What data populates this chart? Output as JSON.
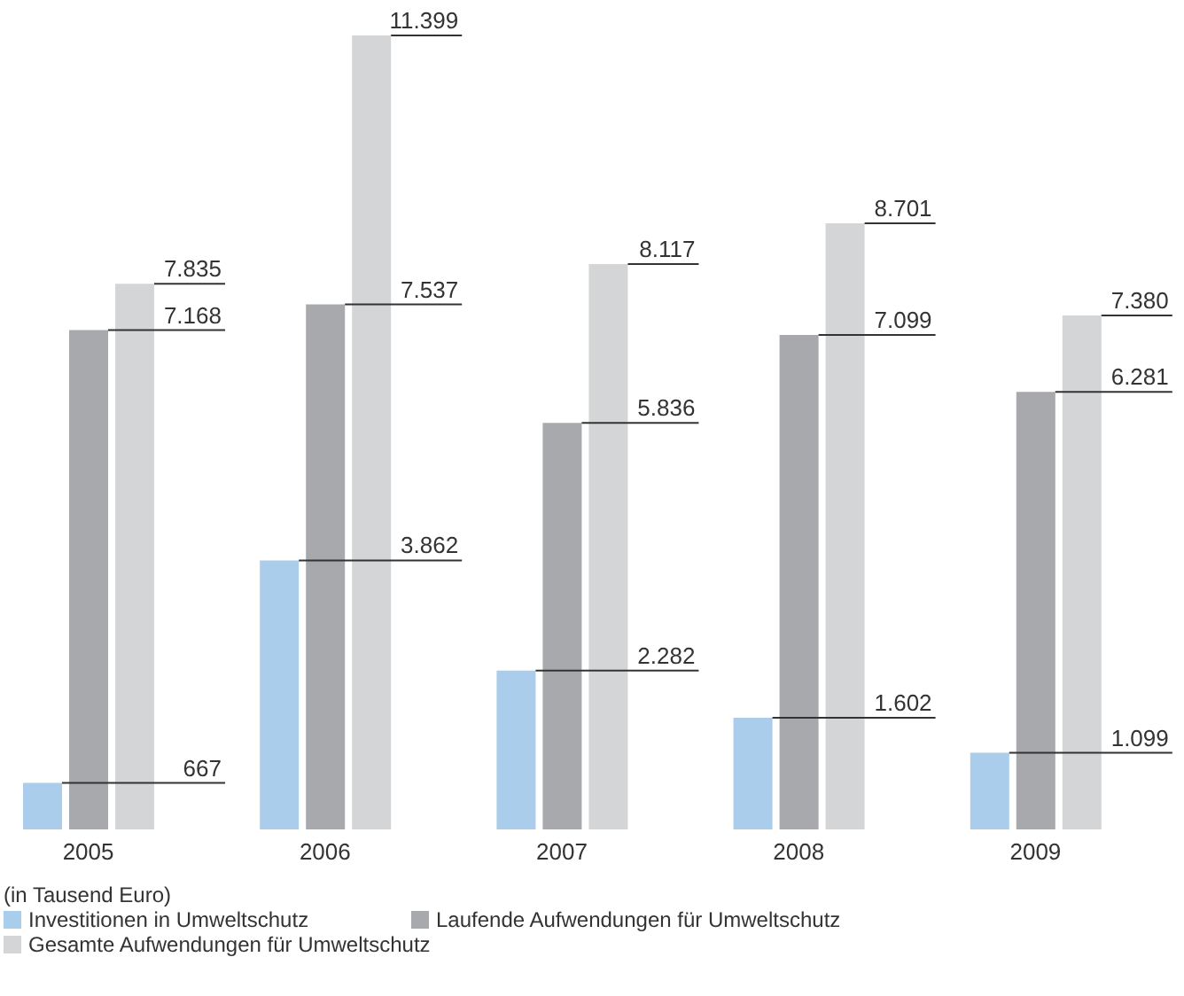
{
  "chart_data": {
    "type": "bar",
    "categories": [
      "2005",
      "2006",
      "2007",
      "2008",
      "2009"
    ],
    "series": [
      {
        "name": "Investitionen in Umweltschutz",
        "color": "#a9cdea",
        "values": [
          667,
          3862,
          2282,
          1602,
          1099
        ],
        "value_labels": [
          "667",
          "3.862",
          "2.282",
          "1.602",
          "1.099"
        ]
      },
      {
        "name": "Laufende Aufwendungen für Umweltschutz",
        "color": "#a8a9ac",
        "values": [
          7168,
          7537,
          5836,
          7099,
          6281
        ],
        "value_labels": [
          "7.168",
          "7.537",
          "5.836",
          "7.099",
          "6.281"
        ]
      },
      {
        "name": "Gesamte Aufwendungen für Umweltschutz",
        "color": "#d4d5d6",
        "values": [
          7835,
          11399,
          8117,
          8701,
          7380
        ],
        "value_labels": [
          "7.835",
          "11.399",
          "8.117",
          "8.701",
          "7.380"
        ]
      }
    ],
    "annotations": [
      "(in Tausend Euro)"
    ],
    "legend": "bottom left",
    "grid": false
  }
}
